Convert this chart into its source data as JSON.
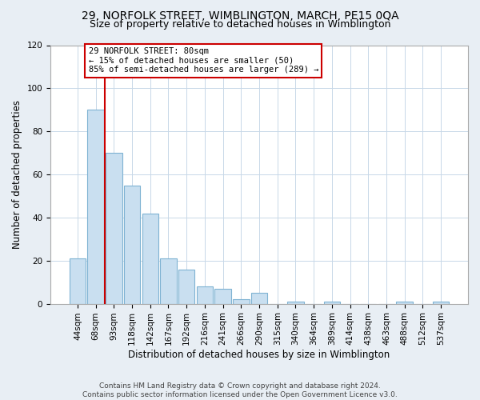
{
  "title": "29, NORFOLK STREET, WIMBLINGTON, MARCH, PE15 0QA",
  "subtitle": "Size of property relative to detached houses in Wimblington",
  "xlabel": "Distribution of detached houses by size in Wimblington",
  "ylabel": "Number of detached properties",
  "bar_labels": [
    "44sqm",
    "68sqm",
    "93sqm",
    "118sqm",
    "142sqm",
    "167sqm",
    "192sqm",
    "216sqm",
    "241sqm",
    "266sqm",
    "290sqm",
    "315sqm",
    "340sqm",
    "364sqm",
    "389sqm",
    "414sqm",
    "438sqm",
    "463sqm",
    "488sqm",
    "512sqm",
    "537sqm"
  ],
  "bar_values": [
    21,
    90,
    70,
    55,
    42,
    21,
    16,
    8,
    7,
    2,
    5,
    0,
    1,
    0,
    1,
    0,
    0,
    0,
    1,
    0,
    1
  ],
  "bar_color": "#c9dff0",
  "bar_edge_color": "#7fb3d3",
  "vline_x": 1.5,
  "vline_color": "#cc0000",
  "annotation_text": "29 NORFOLK STREET: 80sqm\n← 15% of detached houses are smaller (50)\n85% of semi-detached houses are larger (289) →",
  "annotation_box_color": "white",
  "annotation_box_edgecolor": "#cc0000",
  "ylim": [
    0,
    120
  ],
  "yticks": [
    0,
    20,
    40,
    60,
    80,
    100,
    120
  ],
  "footer": "Contains HM Land Registry data © Crown copyright and database right 2024.\nContains public sector information licensed under the Open Government Licence v3.0.",
  "bg_color": "#e8eef4",
  "plot_bg_color": "white",
  "title_fontsize": 10,
  "subtitle_fontsize": 9,
  "xlabel_fontsize": 8.5,
  "ylabel_fontsize": 8.5,
  "tick_fontsize": 7.5,
  "footer_fontsize": 6.5,
  "grid_color": "#c8d8e8"
}
